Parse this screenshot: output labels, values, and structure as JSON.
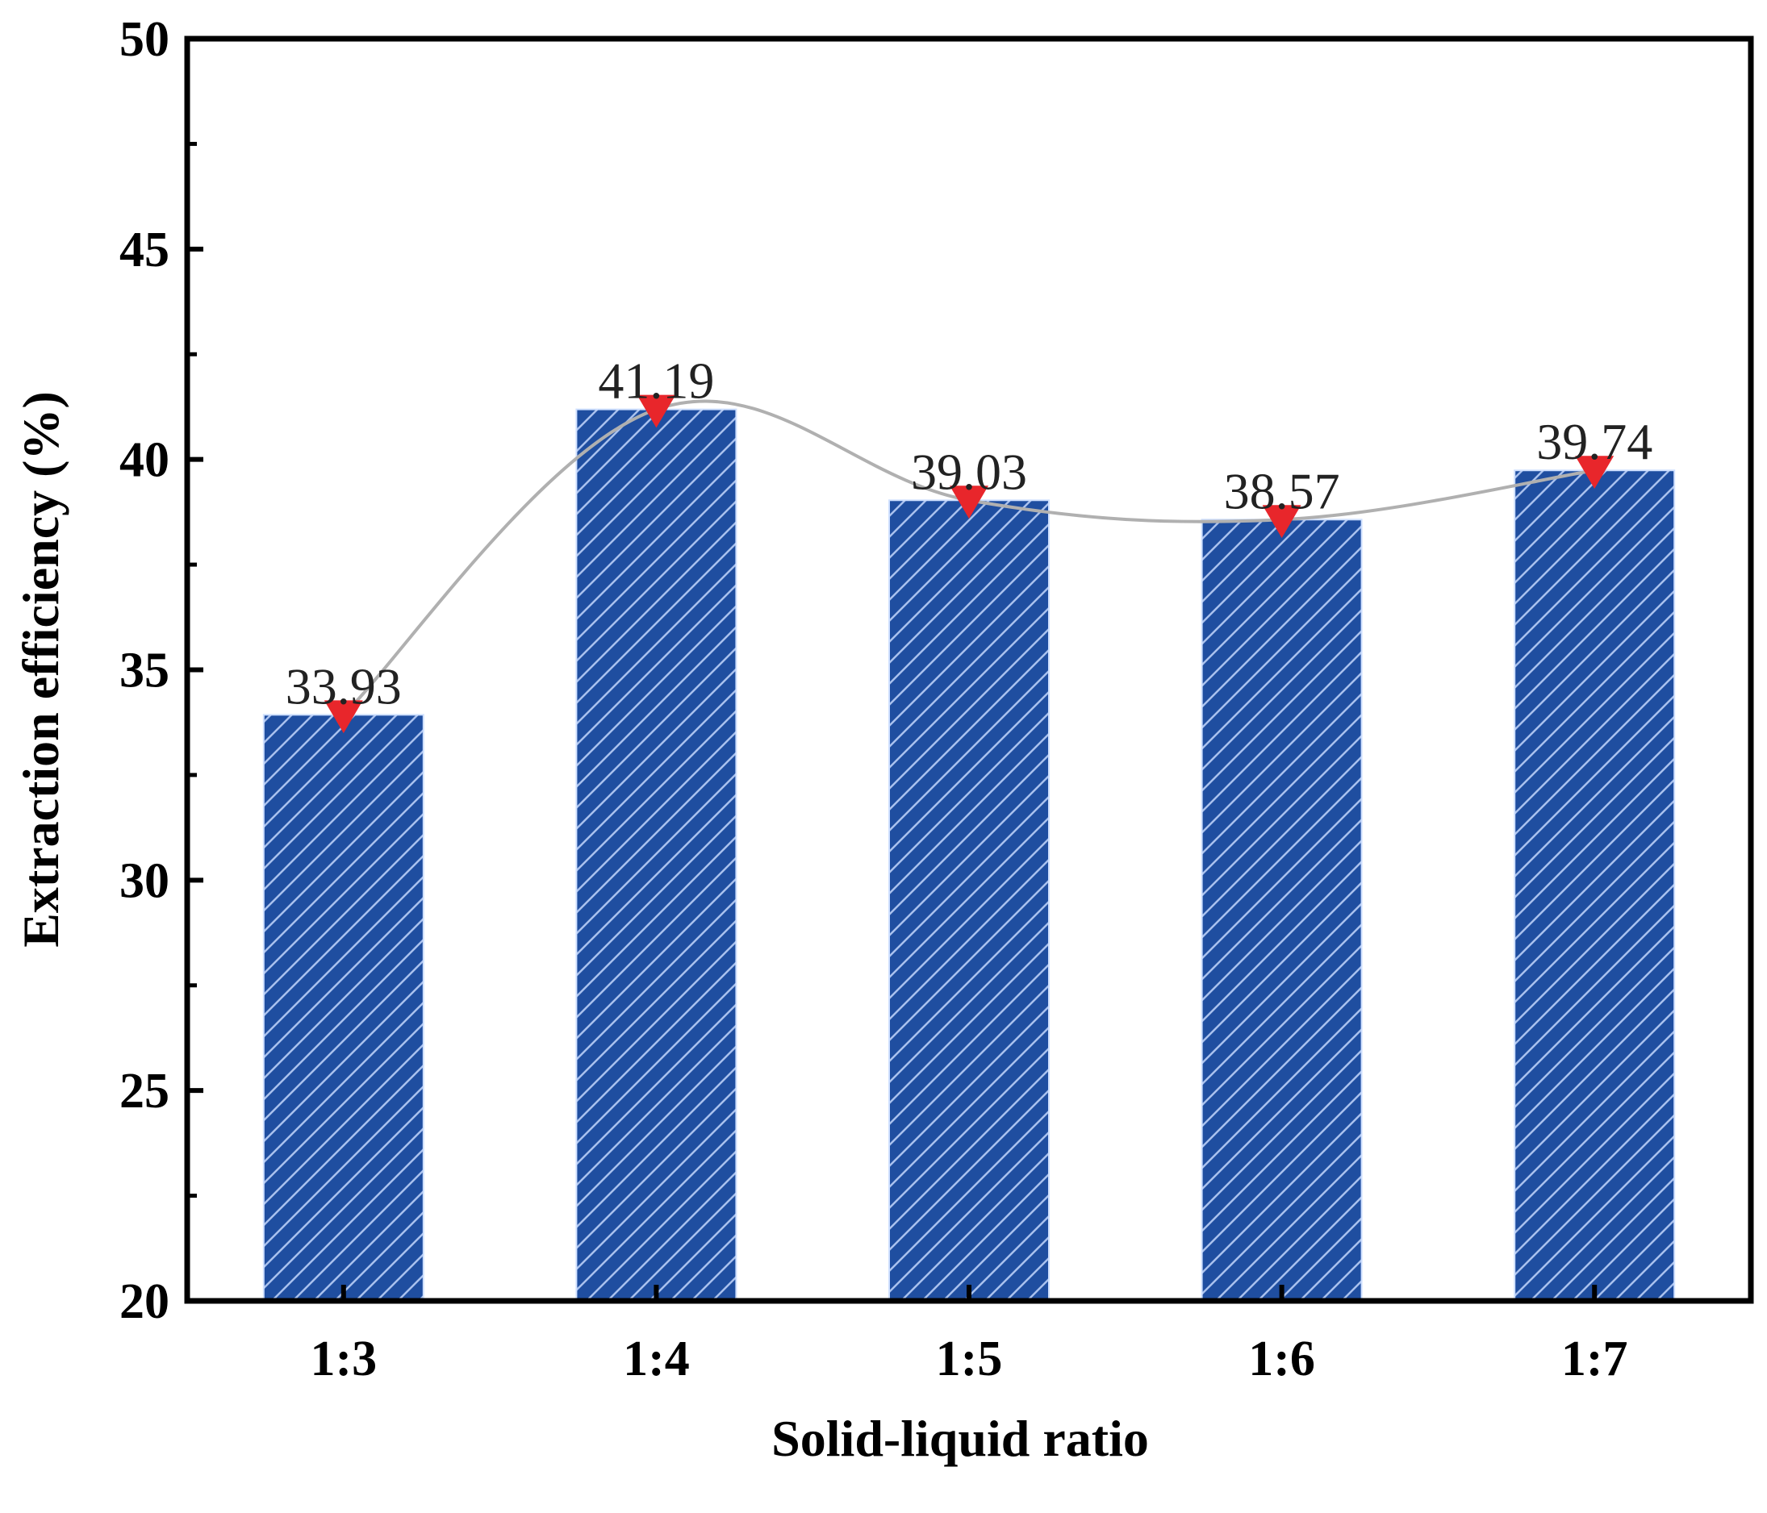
{
  "chart_data": {
    "type": "bar",
    "title": "",
    "xlabel": "Solid-liquid ratio",
    "ylabel": "Extraction efficiency (%)",
    "categories": [
      "1:3",
      "1:4",
      "1:5",
      "1:6",
      "1:7"
    ],
    "values": [
      33.93,
      41.19,
      39.03,
      38.57,
      39.74
    ],
    "data_labels": [
      "33.93",
      "41.19",
      "39.03",
      "38.57",
      "39.74"
    ],
    "ylim": [
      20,
      50
    ],
    "yticks": [
      20,
      25,
      30,
      35,
      40,
      45,
      50
    ],
    "ytick_labels": [
      "20",
      "25",
      "30",
      "35",
      "40",
      "45",
      "50"
    ],
    "overlay_series": {
      "type": "line",
      "marker": "down-triangle",
      "values": [
        33.93,
        41.19,
        39.03,
        38.57,
        39.74
      ]
    },
    "grid": false,
    "legend": "none",
    "colors": {
      "bar_fill": "#1f4ea0",
      "bar_hatch": "#a9c1ee",
      "line": "#b0b0b0",
      "marker": "#e8262b",
      "axis": "#000000"
    }
  }
}
